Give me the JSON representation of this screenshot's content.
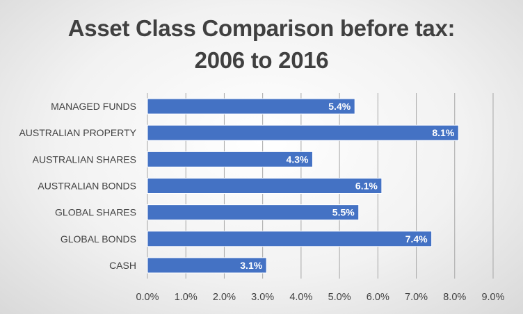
{
  "chart_data": {
    "type": "bar",
    "orientation": "horizontal",
    "title_lines": [
      "Asset Class Comparison before tax:",
      "2006 to 2016"
    ],
    "categories": [
      "MANAGED FUNDS",
      "AUSTRALIAN PROPERTY",
      "AUSTRALIAN SHARES",
      "AUSTRALIAN BONDS",
      "GLOBAL SHARES",
      "GLOBAL BONDS",
      "CASH"
    ],
    "values": [
      5.4,
      8.1,
      4.3,
      6.1,
      5.5,
      7.4,
      3.1
    ],
    "data_labels": [
      "5.4%",
      "8.1%",
      "4.3%",
      "6.1%",
      "5.5%",
      "7.4%",
      "3.1%"
    ],
    "xlim": [
      0,
      9
    ],
    "x_ticks": [
      0,
      1,
      2,
      3,
      4,
      5,
      6,
      7,
      8,
      9
    ],
    "x_tick_labels": [
      "0.0%",
      "1.0%",
      "2.0%",
      "3.0%",
      "4.0%",
      "5.0%",
      "6.0%",
      "7.0%",
      "8.0%",
      "9.0%"
    ],
    "grid": "vertical",
    "legend": "none",
    "bar_color": "#4472C4"
  }
}
